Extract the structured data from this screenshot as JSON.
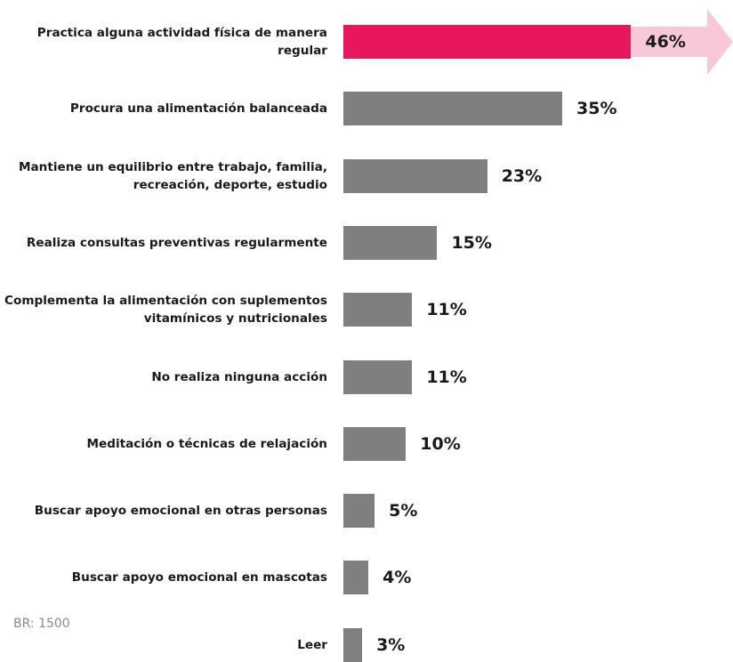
{
  "chart_data": {
    "type": "bar",
    "orientation": "horizontal",
    "categories": [
      "Practica alguna actividad física de manera regular",
      "Procura una alimentación balanceada",
      "Mantiene un equilibrio entre trabajo, familia, recreación, deporte, estudio",
      "Realiza consultas preventivas regularmente",
      "Complementa la alimentación con suplementos vitamínicos y nutricionales",
      "No realiza ninguna acción",
      "Meditación o técnicas de relajación",
      "Buscar apoyo emocional en otras personas",
      "Buscar apoyo emocional en mascotas",
      "Leer"
    ],
    "values": [
      46,
      35,
      23,
      15,
      11,
      11,
      10,
      5,
      4,
      3
    ],
    "value_labels": [
      "46%",
      "35%",
      "23%",
      "15%",
      "11%",
      "11%",
      "10%",
      "5%",
      "4%",
      "3%"
    ],
    "colors": [
      "#e8175d",
      "#7f7f7f",
      "#7f7f7f",
      "#7f7f7f",
      "#7f7f7f",
      "#7f7f7f",
      "#7f7f7f",
      "#7f7f7f",
      "#7f7f7f",
      "#7f7f7f"
    ],
    "note": "BR: 1500"
  }
}
